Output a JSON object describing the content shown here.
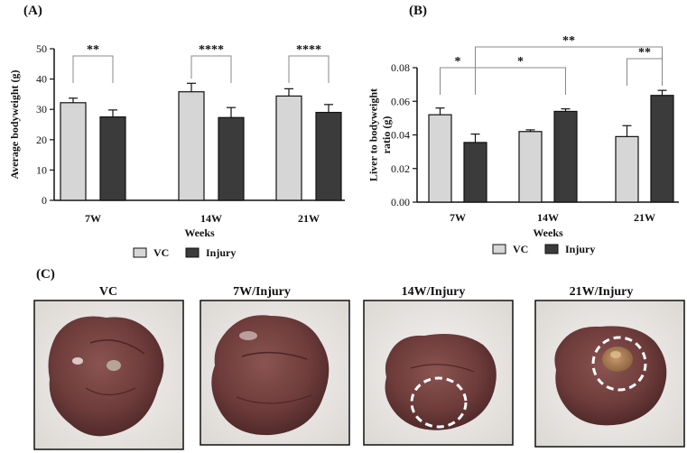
{
  "figure": {
    "panel_labels": {
      "a": "(A)",
      "b": "(B)",
      "c": "(C)"
    },
    "colors": {
      "vc": "#d6d6d6",
      "injury": "#3b3b3b",
      "axis": "#111111"
    }
  },
  "chart_data": [
    {
      "type": "bar",
      "panel": "(A)",
      "categories": [
        "7W",
        "14W",
        "21W"
      ],
      "series": [
        {
          "name": "VC",
          "values": [
            32.2,
            35.8,
            34.4
          ],
          "errors": [
            1.5,
            2.8,
            2.4
          ],
          "color": "#d6d6d6"
        },
        {
          "name": "Injury",
          "values": [
            27.5,
            27.3,
            29.0
          ],
          "errors": [
            2.3,
            3.3,
            2.6
          ],
          "color": "#3b3b3b"
        }
      ],
      "xlabel": "Weeks",
      "ylabel": "Average bodyweight (g)",
      "ylim": [
        0,
        50
      ],
      "yticks": [
        "0",
        "10",
        "20",
        "30",
        "40",
        "50"
      ],
      "legend": "bottom",
      "grid": false,
      "annotations": [
        {
          "label": "**",
          "from": [
            "7W",
            "VC"
          ],
          "to": [
            "7W",
            "Injury"
          ]
        },
        {
          "label": "****",
          "from": [
            "14W",
            "VC"
          ],
          "to": [
            "14W",
            "Injury"
          ]
        },
        {
          "label": "****",
          "from": [
            "21W",
            "VC"
          ],
          "to": [
            "21W",
            "Injury"
          ]
        }
      ]
    },
    {
      "type": "bar",
      "panel": "(B)",
      "categories": [
        "7W",
        "14W",
        "21W"
      ],
      "series": [
        {
          "name": "VC",
          "values": [
            0.052,
            0.042,
            0.039
          ],
          "errors": [
            0.004,
            0.001,
            0.0065
          ],
          "color": "#d6d6d6"
        },
        {
          "name": "Injury",
          "values": [
            0.0355,
            0.054,
            0.0635
          ],
          "errors": [
            0.005,
            0.0015,
            0.003
          ],
          "color": "#3b3b3b"
        }
      ],
      "xlabel": "Weeks",
      "ylabel": "Liver to bodyweight ratio (g)",
      "ylim": [
        0,
        0.08
      ],
      "yticks": [
        "0.00",
        "0.02",
        "0.04",
        "0.06",
        "0.08"
      ],
      "legend": "bottom",
      "grid": false,
      "annotations": [
        {
          "label": "*",
          "from": [
            "7W",
            "VC"
          ],
          "to": [
            "7W",
            "Injury"
          ]
        },
        {
          "label": "*",
          "from": [
            "7W",
            "Injury"
          ],
          "to": [
            "14W",
            "Injury"
          ]
        },
        {
          "label": "**",
          "from": [
            "21W",
            "VC"
          ],
          "to": [
            "21W",
            "Injury"
          ]
        },
        {
          "label": "**",
          "from": [
            "7W",
            "Injury"
          ],
          "to": [
            "21W",
            "Injury"
          ]
        }
      ]
    }
  ],
  "photos": [
    {
      "caption": "VC",
      "lesion_circle": false
    },
    {
      "caption": "7W/Injury",
      "lesion_circle": false
    },
    {
      "caption": "14W/Injury",
      "lesion_circle": true
    },
    {
      "caption": "21W/Injury",
      "lesion_circle": true
    }
  ]
}
